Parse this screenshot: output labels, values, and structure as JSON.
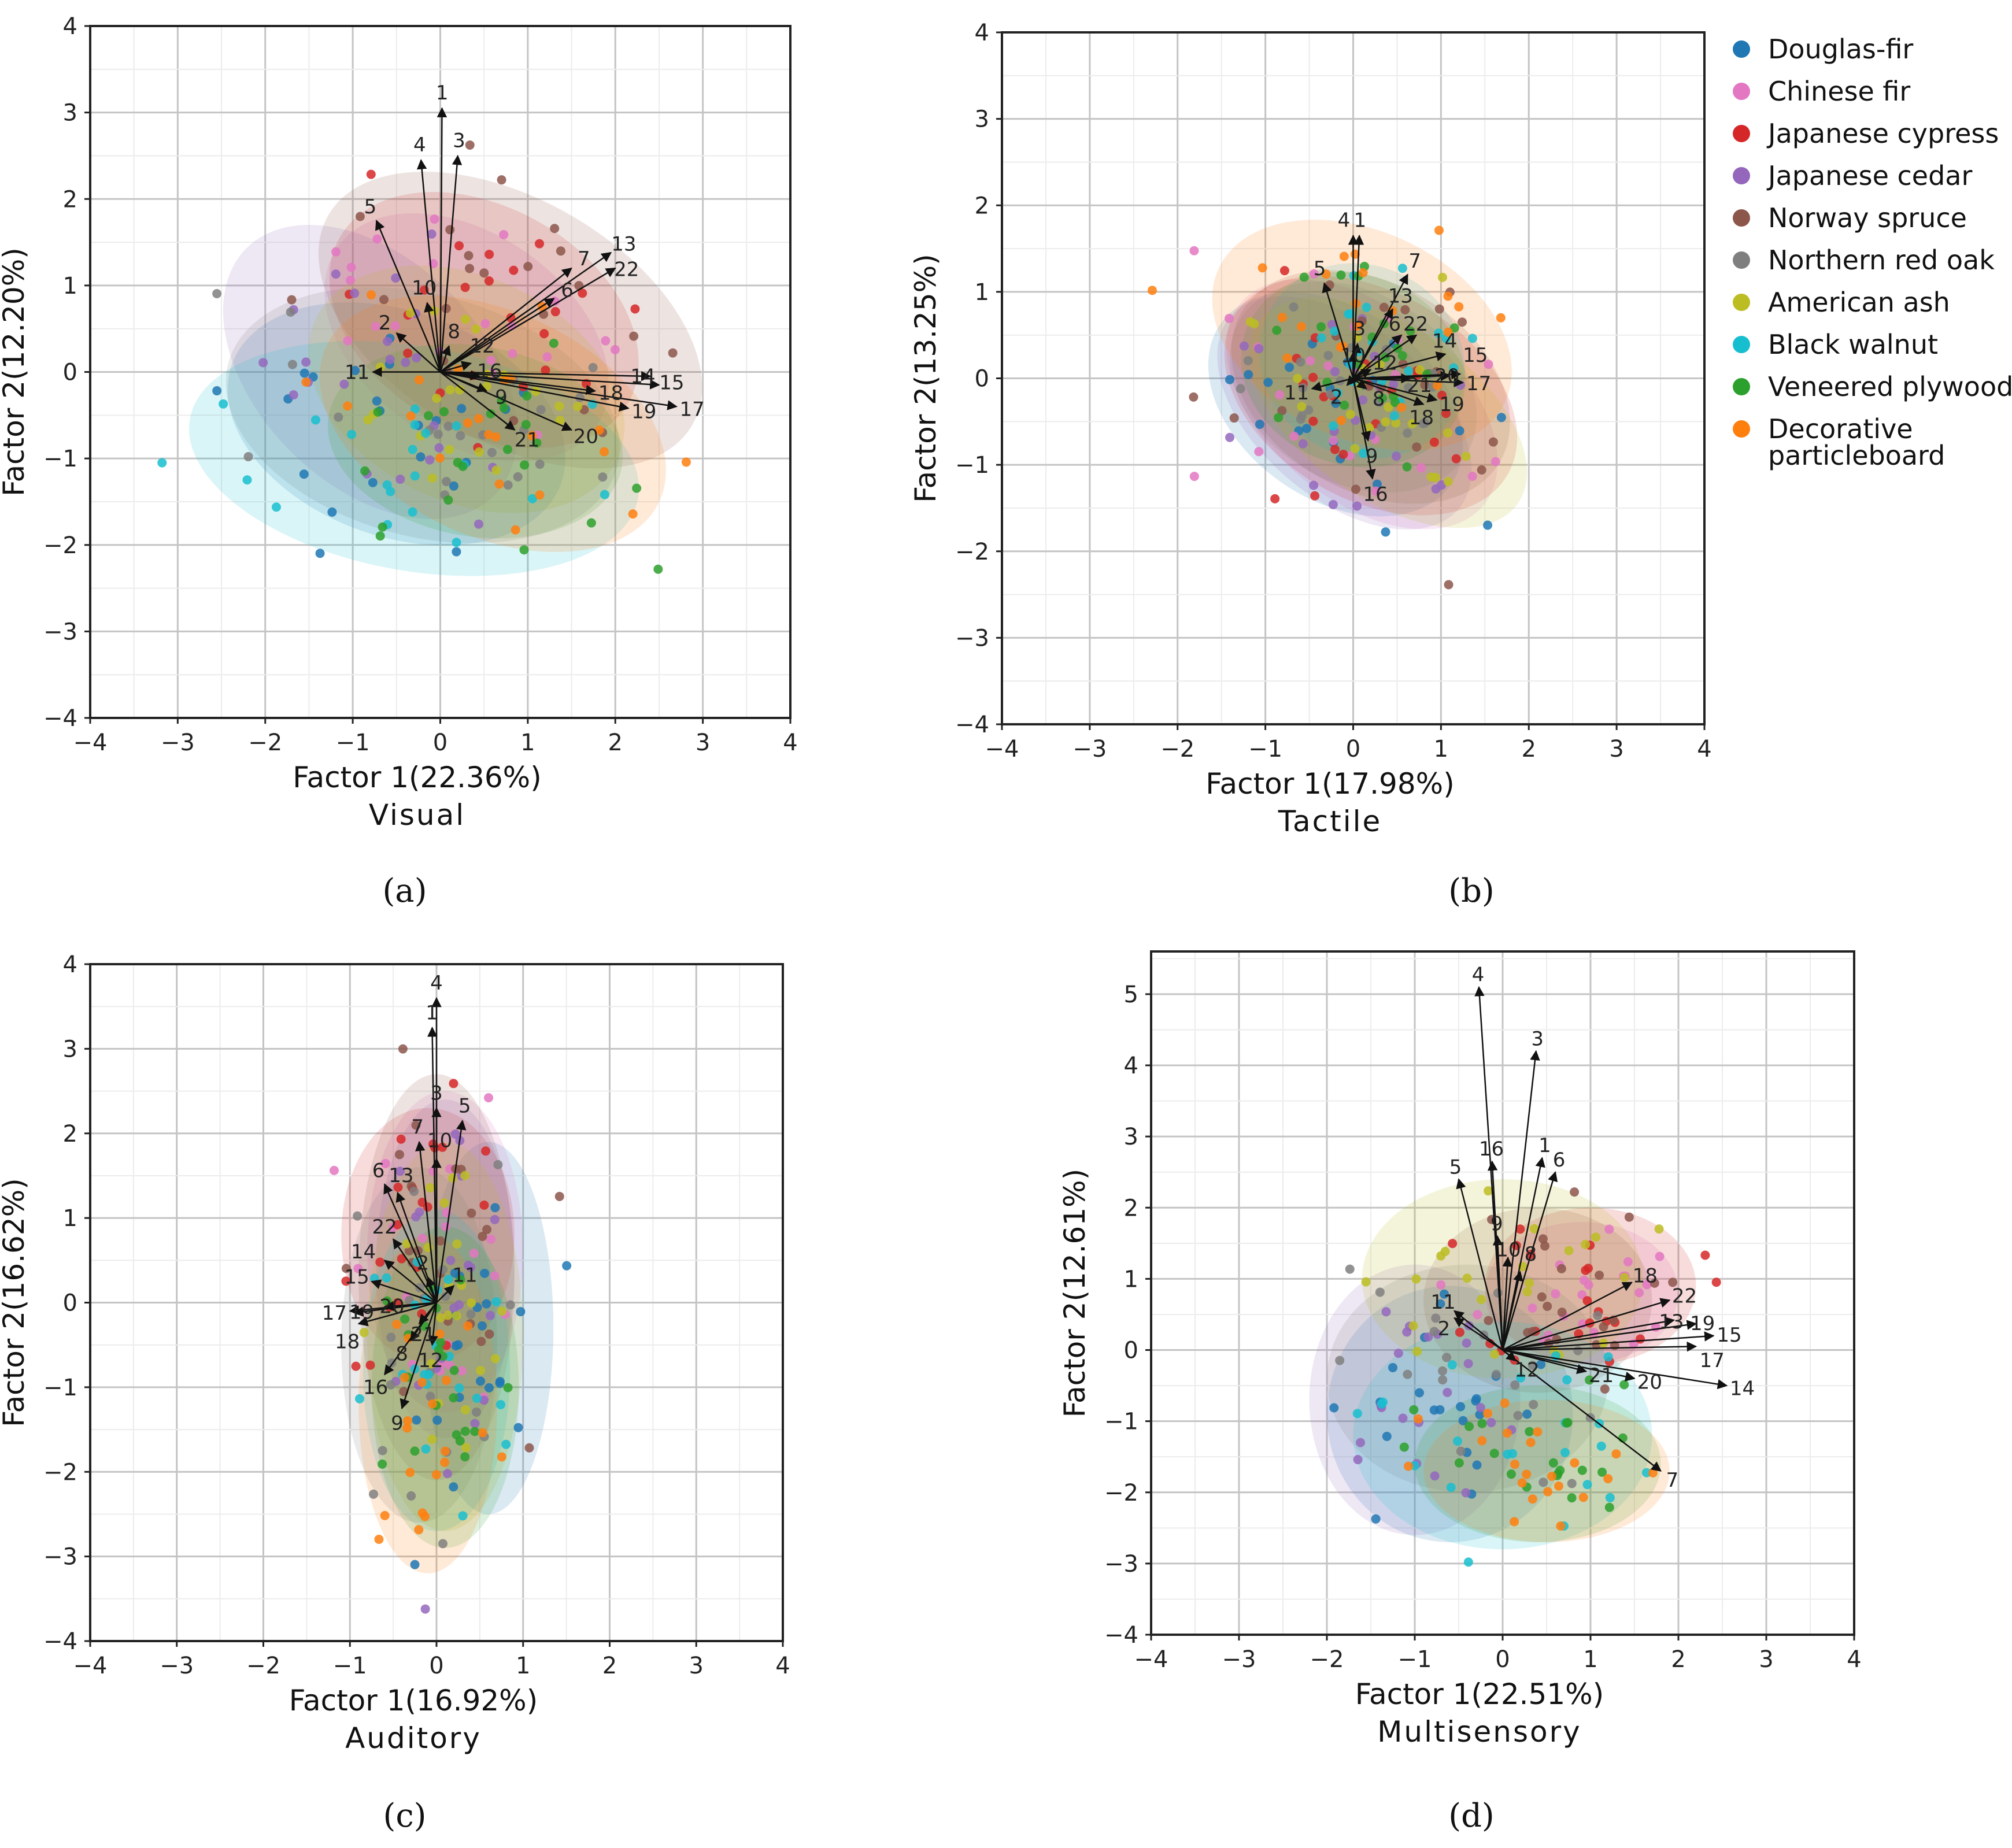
{
  "legend": [
    {
      "name": "Douglas-fir",
      "color": "#1f77b4"
    },
    {
      "name": "Chinese fir",
      "color": "#e377c2"
    },
    {
      "name": "Japanese cypress",
      "color": "#d62728"
    },
    {
      "name": "Japanese cedar",
      "color": "#9467bd"
    },
    {
      "name": "Norway spruce",
      "color": "#8c564b"
    },
    {
      "name": "Northern red oak",
      "color": "#7f7f7f"
    },
    {
      "name": "American ash",
      "color": "#bcbd22"
    },
    {
      "name": "Black walnut",
      "color": "#17becf"
    },
    {
      "name": "Veneered plywood",
      "color": "#2ca02c"
    },
    {
      "name": "Decorative particleboard",
      "color": "#ff7f0e",
      "lines": [
        "Decorative",
        "particleboard"
      ]
    }
  ],
  "chart_data": [
    {
      "type": "scatter",
      "panel": "(a)",
      "title": "Visual",
      "xlabel": "Factor 1(22.36%)",
      "ylabel": "Factor 2(12.20%)",
      "xlim": [
        -4,
        4
      ],
      "ylim": [
        -4,
        4
      ],
      "xticks": [
        -4,
        -3,
        -2,
        -1,
        0,
        1,
        2,
        3,
        4
      ],
      "yticks": [
        -4,
        -3,
        -2,
        -1,
        0,
        1,
        2,
        3,
        4
      ],
      "grid": true,
      "points_per_group": 22,
      "ellipses": [
        {
          "group": "Douglas-fir",
          "cx": -0.5,
          "cy": -0.6,
          "rx": 2.0,
          "ry": 1.3,
          "angle": -20
        },
        {
          "group": "Chinese fir",
          "cx": 0.3,
          "cy": 0.4,
          "rx": 1.8,
          "ry": 1.2,
          "angle": -35
        },
        {
          "group": "Japanese cypress",
          "cx": 0.5,
          "cy": 0.6,
          "rx": 1.9,
          "ry": 1.3,
          "angle": -30
        },
        {
          "group": "Japanese cedar",
          "cx": -0.8,
          "cy": 0.0,
          "rx": 2.0,
          "ry": 1.3,
          "angle": -45
        },
        {
          "group": "Norway spruce",
          "cx": 0.8,
          "cy": 0.6,
          "rx": 2.4,
          "ry": 1.4,
          "angle": -30
        },
        {
          "group": "Northern red oak",
          "cx": -0.2,
          "cy": -0.5,
          "rx": 2.3,
          "ry": 1.4,
          "angle": -15
        },
        {
          "group": "American ash",
          "cx": 0.3,
          "cy": -0.2,
          "rx": 1.9,
          "ry": 1.3,
          "angle": -25
        },
        {
          "group": "Black walnut",
          "cx": -0.3,
          "cy": -1.0,
          "rx": 2.6,
          "ry": 1.3,
          "angle": -10
        },
        {
          "group": "Veneered plywood",
          "cx": 0.4,
          "cy": -0.8,
          "rx": 1.7,
          "ry": 1.1,
          "angle": -10
        },
        {
          "group": "Decorative particleboard",
          "cx": 0.6,
          "cy": -0.6,
          "rx": 2.1,
          "ry": 1.3,
          "angle": -25
        }
      ],
      "loadings": [
        {
          "label": "1",
          "x": 0.02,
          "y": 3.05
        },
        {
          "label": "2",
          "x": -0.5,
          "y": 0.45
        },
        {
          "label": "3",
          "x": 0.2,
          "y": 2.5
        },
        {
          "label": "4",
          "x": -0.22,
          "y": 2.45
        },
        {
          "label": "5",
          "x": -0.73,
          "y": 1.75
        },
        {
          "label": "6",
          "x": 1.3,
          "y": 0.85
        },
        {
          "label": "7",
          "x": 1.5,
          "y": 1.2
        },
        {
          "label": "8",
          "x": 0.1,
          "y": 0.3
        },
        {
          "label": "9",
          "x": 0.53,
          "y": -0.22
        },
        {
          "label": "10",
          "x": -0.15,
          "y": 0.8
        },
        {
          "label": "11",
          "x": -0.77,
          "y": 0.0
        },
        {
          "label": "12",
          "x": 0.35,
          "y": 0.1
        },
        {
          "label": "13",
          "x": 1.95,
          "y": 1.38
        },
        {
          "label": "14",
          "x": 2.4,
          "y": -0.05
        },
        {
          "label": "15",
          "x": 2.5,
          "y": -0.15
        },
        {
          "label": "16",
          "x": 0.45,
          "y": -0.05
        },
        {
          "label": "17",
          "x": 2.7,
          "y": -0.4
        },
        {
          "label": "18",
          "x": 1.77,
          "y": -0.22
        },
        {
          "label": "19",
          "x": 2.15,
          "y": -0.42
        },
        {
          "label": "20",
          "x": 1.5,
          "y": -0.67
        },
        {
          "label": "21",
          "x": 0.85,
          "y": -0.67
        },
        {
          "label": "22",
          "x": 2.0,
          "y": 1.2
        }
      ]
    },
    {
      "type": "scatter",
      "panel": "(b)",
      "title": "Tactile",
      "xlabel": "Factor 1(17.98%)",
      "ylabel": "Factor 2(13.25%)",
      "xlim": [
        -4,
        4
      ],
      "ylim": [
        -4,
        4
      ],
      "xticks": [
        -4,
        -3,
        -2,
        -1,
        0,
        1,
        2,
        3,
        4
      ],
      "yticks": [
        -4,
        -3,
        -2,
        -1,
        0,
        1,
        2,
        3,
        4
      ],
      "grid": true,
      "points_per_group": 22,
      "ellipses": [
        {
          "group": "Douglas-fir",
          "cx": -0.2,
          "cy": -0.3,
          "rx": 1.6,
          "ry": 1.1,
          "angle": -35
        },
        {
          "group": "Chinese fir",
          "cx": 0.1,
          "cy": -0.3,
          "rx": 1.8,
          "ry": 1.1,
          "angle": -40
        },
        {
          "group": "Japanese cypress",
          "cx": 0.2,
          "cy": -0.2,
          "rx": 1.8,
          "ry": 1.2,
          "angle": -30
        },
        {
          "group": "Japanese cedar",
          "cx": -0.1,
          "cy": -0.4,
          "rx": 1.7,
          "ry": 1.0,
          "angle": -40
        },
        {
          "group": "Norway spruce",
          "cx": 0.2,
          "cy": -0.1,
          "rx": 1.7,
          "ry": 1.2,
          "angle": -30
        },
        {
          "group": "Northern red oak",
          "cx": 0.0,
          "cy": -0.1,
          "rx": 1.5,
          "ry": 1.1,
          "angle": -30
        },
        {
          "group": "American ash",
          "cx": 0.4,
          "cy": -0.4,
          "rx": 1.8,
          "ry": 1.0,
          "angle": -35
        },
        {
          "group": "Black walnut",
          "cx": 0.1,
          "cy": 0.2,
          "rx": 1.2,
          "ry": 1.1,
          "angle": -30
        },
        {
          "group": "Veneered plywood",
          "cx": 0.0,
          "cy": 0.1,
          "rx": 1.3,
          "ry": 1.1,
          "angle": -20
        },
        {
          "group": "Decorative particleboard",
          "cx": 0.1,
          "cy": 0.5,
          "rx": 1.8,
          "ry": 1.2,
          "angle": -25
        }
      ],
      "loadings": [
        {
          "label": "1",
          "x": 0.07,
          "y": 1.65
        },
        {
          "label": "2",
          "x": -0.07,
          "y": -0.08
        },
        {
          "label": "3",
          "x": 0.05,
          "y": 0.4
        },
        {
          "label": "4",
          "x": 0.0,
          "y": 1.65
        },
        {
          "label": "5",
          "x": -0.33,
          "y": 1.1
        },
        {
          "label": "6",
          "x": 0.55,
          "y": 0.5
        },
        {
          "label": "7",
          "x": 0.62,
          "y": 1.2
        },
        {
          "label": "8",
          "x": 0.15,
          "y": -0.12
        },
        {
          "label": "9",
          "x": 0.17,
          "y": -0.72
        },
        {
          "label": "10",
          "x": 0.0,
          "y": 0.3
        },
        {
          "label": "11",
          "x": -0.47,
          "y": -0.12
        },
        {
          "label": "12",
          "x": 0.2,
          "y": 0.1
        },
        {
          "label": "13",
          "x": 0.45,
          "y": 0.8
        },
        {
          "label": "14",
          "x": 1.05,
          "y": 0.28
        },
        {
          "label": "15",
          "x": 1.22,
          "y": 0.05
        },
        {
          "label": "16",
          "x": 0.22,
          "y": -1.16
        },
        {
          "label": "17",
          "x": 1.25,
          "y": -0.05
        },
        {
          "label": "18",
          "x": 0.8,
          "y": -0.3
        },
        {
          "label": "19",
          "x": 0.95,
          "y": -0.25
        },
        {
          "label": "20",
          "x": 1.1,
          "y": 0.03
        },
        {
          "label": "21",
          "x": 0.65,
          "y": 0.0
        },
        {
          "label": "22",
          "x": 0.72,
          "y": 0.5
        }
      ]
    },
    {
      "type": "scatter",
      "panel": "(c)",
      "title": "Auditory",
      "xlabel": "Factor 1(16.92%)",
      "ylabel": "Factor 2(16.62%)",
      "xlim": [
        -4,
        4
      ],
      "ylim": [
        -4,
        4
      ],
      "xticks": [
        -4,
        -3,
        -2,
        -1,
        0,
        1,
        2,
        3,
        4
      ],
      "yticks": [
        -4,
        -3,
        -2,
        -1,
        0,
        1,
        2,
        3,
        4
      ],
      "grid": true,
      "points_per_group": 22,
      "ellipses": [
        {
          "group": "Douglas-fir",
          "cx": 0.6,
          "cy": -0.3,
          "rx": 0.75,
          "ry": 2.2,
          "angle": 0
        },
        {
          "group": "Chinese fir",
          "cx": 0.1,
          "cy": 0.6,
          "rx": 0.9,
          "ry": 1.9,
          "angle": 0
        },
        {
          "group": "Japanese cypress",
          "cx": -0.1,
          "cy": 0.8,
          "rx": 1.0,
          "ry": 1.5,
          "angle": 0
        },
        {
          "group": "Japanese cedar",
          "cx": 0.1,
          "cy": 0.4,
          "rx": 0.8,
          "ry": 2.0,
          "angle": 0
        },
        {
          "group": "Norway spruce",
          "cx": 0.0,
          "cy": 0.3,
          "rx": 0.9,
          "ry": 2.4,
          "angle": 0
        },
        {
          "group": "Northern red oak",
          "cx": -0.2,
          "cy": -0.5,
          "rx": 0.9,
          "ry": 2.1,
          "angle": 0
        },
        {
          "group": "American ash",
          "cx": 0.1,
          "cy": -0.4,
          "rx": 0.9,
          "ry": 2.3,
          "angle": 0
        },
        {
          "group": "Black walnut",
          "cx": 0.0,
          "cy": -0.8,
          "rx": 0.85,
          "ry": 1.9,
          "angle": 0
        },
        {
          "group": "Veneered plywood",
          "cx": 0.1,
          "cy": -1.0,
          "rx": 0.85,
          "ry": 1.9,
          "angle": 0
        },
        {
          "group": "Decorative particleboard",
          "cx": -0.1,
          "cy": -1.2,
          "rx": 0.8,
          "ry": 2.0,
          "angle": 0
        }
      ],
      "loadings": [
        {
          "label": "1",
          "x": -0.05,
          "y": 3.25
        },
        {
          "label": "2",
          "x": -0.1,
          "y": 0.3
        },
        {
          "label": "3",
          "x": 0.0,
          "y": 2.3
        },
        {
          "label": "4",
          "x": 0.0,
          "y": 3.6
        },
        {
          "label": "5",
          "x": 0.3,
          "y": 2.15
        },
        {
          "label": "6",
          "x": -0.6,
          "y": 1.4
        },
        {
          "label": "7",
          "x": -0.2,
          "y": 1.9
        },
        {
          "label": "8",
          "x": -0.3,
          "y": -0.45
        },
        {
          "label": "9",
          "x": -0.4,
          "y": -1.25
        },
        {
          "label": "10",
          "x": 0.0,
          "y": 1.7
        },
        {
          "label": "11",
          "x": 0.2,
          "y": 0.2
        },
        {
          "label": "12",
          "x": -0.05,
          "y": -0.5
        },
        {
          "label": "13",
          "x": -0.45,
          "y": 1.3
        },
        {
          "label": "14",
          "x": -0.6,
          "y": 0.5
        },
        {
          "label": "15",
          "x": -0.75,
          "y": 0.25
        },
        {
          "label": "16",
          "x": -0.6,
          "y": -0.85
        },
        {
          "label": "17",
          "x": -1.0,
          "y": -0.1
        },
        {
          "label": "18",
          "x": -0.9,
          "y": -0.25
        },
        {
          "label": "19",
          "x": -0.95,
          "y": -0.12
        },
        {
          "label": "20",
          "x": -0.6,
          "y": -0.05
        },
        {
          "label": "21",
          "x": -0.2,
          "y": -0.25
        },
        {
          "label": "22",
          "x": -0.5,
          "y": 0.75
        }
      ]
    },
    {
      "type": "scatter",
      "panel": "(d)",
      "title": "Multisensory",
      "xlabel": "Factor 1(22.51%)",
      "ylabel": "Factor 2(12.61%)",
      "xlim": [
        -4,
        4
      ],
      "ylim": [
        -4,
        5.6
      ],
      "xticks": [
        -4,
        -3,
        -2,
        -1,
        0,
        1,
        2,
        3,
        4
      ],
      "yticks": [
        -4,
        -3,
        -2,
        -1,
        0,
        1,
        2,
        3,
        4,
        5
      ],
      "grid": true,
      "points_per_group": 22,
      "ellipses": [
        {
          "group": "Douglas-fir",
          "cx": -0.6,
          "cy": -0.9,
          "rx": 1.4,
          "ry": 1.8,
          "angle": 0
        },
        {
          "group": "Chinese fir",
          "cx": 0.9,
          "cy": 0.8,
          "rx": 1.1,
          "ry": 1.0,
          "angle": 0
        },
        {
          "group": "Japanese cypress",
          "cx": 1.0,
          "cy": 0.9,
          "rx": 1.2,
          "ry": 1.1,
          "angle": 0
        },
        {
          "group": "Japanese cedar",
          "cx": -1.0,
          "cy": -0.7,
          "rx": 1.2,
          "ry": 1.9,
          "angle": 0
        },
        {
          "group": "Norway spruce",
          "cx": 0.4,
          "cy": 0.7,
          "rx": 1.3,
          "ry": 1.3,
          "angle": 0
        },
        {
          "group": "Northern red oak",
          "cx": -0.4,
          "cy": -0.4,
          "rx": 1.6,
          "ry": 1.6,
          "angle": 0
        },
        {
          "group": "American ash",
          "cx": 0.0,
          "cy": 1.0,
          "rx": 1.6,
          "ry": 1.4,
          "angle": 0
        },
        {
          "group": "Black walnut",
          "cx": 0.0,
          "cy": -1.2,
          "rx": 1.7,
          "ry": 1.6,
          "angle": 0
        },
        {
          "group": "Veneered plywood",
          "cx": 0.4,
          "cy": -1.6,
          "rx": 1.4,
          "ry": 1.1,
          "angle": 0
        },
        {
          "group": "Decorative particleboard",
          "cx": 0.5,
          "cy": -1.7,
          "rx": 1.4,
          "ry": 1.0,
          "angle": 0
        }
      ],
      "loadings": [
        {
          "label": "1",
          "x": 0.45,
          "y": 2.7
        },
        {
          "label": "2",
          "x": -0.55,
          "y": 0.45
        },
        {
          "label": "3",
          "x": 0.38,
          "y": 4.2
        },
        {
          "label": "4",
          "x": -0.27,
          "y": 5.1
        },
        {
          "label": "5",
          "x": -0.5,
          "y": 2.4
        },
        {
          "label": "6",
          "x": 0.6,
          "y": 2.5
        },
        {
          "label": "7",
          "x": 1.8,
          "y": -1.7
        },
        {
          "label": "8",
          "x": 0.2,
          "y": 1.1
        },
        {
          "label": "9",
          "x": -0.06,
          "y": 1.6
        },
        {
          "label": "10",
          "x": 0.06,
          "y": 1.3
        },
        {
          "label": "11",
          "x": -0.55,
          "y": 0.55
        },
        {
          "label": "12",
          "x": 0.15,
          "y": -0.15
        },
        {
          "label": "13",
          "x": 1.95,
          "y": 0.42
        },
        {
          "label": "14",
          "x": 2.55,
          "y": -0.5
        },
        {
          "label": "15",
          "x": 2.4,
          "y": 0.2
        },
        {
          "label": "16",
          "x": -0.12,
          "y": 2.65
        },
        {
          "label": "17",
          "x": 2.2,
          "y": 0.05
        },
        {
          "label": "18",
          "x": 1.47,
          "y": 0.95
        },
        {
          "label": "19",
          "x": 2.2,
          "y": 0.37
        },
        {
          "label": "20",
          "x": 1.5,
          "y": -0.4
        },
        {
          "label": "21",
          "x": 0.95,
          "y": -0.3
        },
        {
          "label": "22",
          "x": 1.9,
          "y": 0.7
        }
      ]
    }
  ]
}
